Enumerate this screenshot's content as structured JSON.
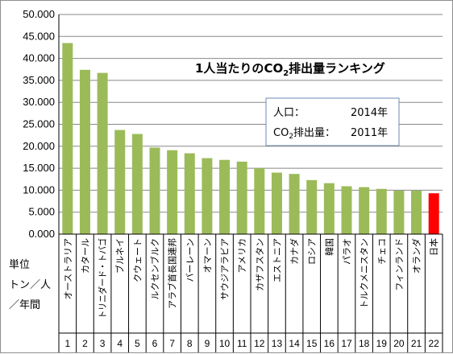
{
  "chart_data": {
    "type": "bar",
    "title": "1人当たりのCO2排出量ランキング",
    "title_parts": {
      "before": "1人当たりのCO",
      "subscript": "2",
      "after": "排出量ランキング"
    },
    "y_ticks": [
      "0.000",
      "5.000",
      "10.000",
      "15.000",
      "20.000",
      "25.000",
      "30.000",
      "35.000",
      "40.000",
      "45.000",
      "50.000"
    ],
    "ylim": [
      0,
      50
    ],
    "grid": true,
    "info_box": {
      "population_label": "人口：",
      "population_year": "2014年",
      "emission_label_before": "CO",
      "emission_label_sub": "2",
      "emission_label_after": "排出量：",
      "emission_year": "2011年"
    },
    "unit_label": [
      "単位",
      "トン／人",
      "／年間"
    ],
    "categories": [
      "オーストラリア",
      "カタール",
      "トリニダード・トバゴ",
      "ブルネイ",
      "クウェート",
      "ルクセンブルク",
      "アラブ首長国連邦",
      "バーレーン",
      "オマーン",
      "サウジアラビア",
      "アメリカ",
      "カザフスタン",
      "エストニア",
      "カナダ",
      "ロシア",
      "韓国",
      "パラオ",
      "トルクメニスタン",
      "チェコ",
      "フィンランド",
      "オランダ",
      "日本"
    ],
    "ranks": [
      "1",
      "2",
      "3",
      "4",
      "5",
      "6",
      "7",
      "8",
      "9",
      "10",
      "11",
      "12",
      "13",
      "14",
      "15",
      "16",
      "17",
      "18",
      "19",
      "20",
      "21",
      "22"
    ],
    "values": [
      43.5,
      37.4,
      36.7,
      23.7,
      22.8,
      19.7,
      19.1,
      18.4,
      17.3,
      16.9,
      16.5,
      15.0,
      14.0,
      13.7,
      12.3,
      11.6,
      10.9,
      10.7,
      10.3,
      9.9,
      9.9,
      9.3
    ],
    "colors": {
      "bar": "#9bbb59",
      "highlight": "#ff0000",
      "grid": "#888888",
      "axis": "#000000"
    },
    "highlight_index": 21
  }
}
